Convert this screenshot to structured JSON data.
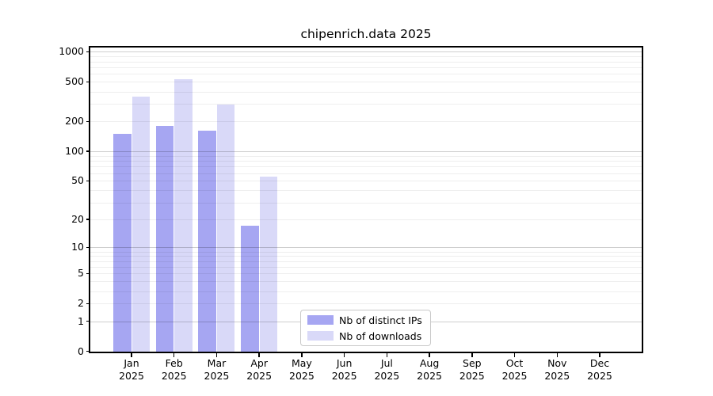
{
  "title": "chipenrich.data 2025",
  "legend": {
    "items": [
      {
        "label": "Nb of distinct IPs",
        "color": "#a6a6f2"
      },
      {
        "label": "Nb of downloads",
        "color": "#d9d9f8"
      }
    ]
  },
  "y_axis": {
    "tick_labels": [
      "1000",
      "500",
      "200",
      "100",
      "50",
      "20",
      "10",
      "5",
      "2",
      "1",
      "0"
    ]
  },
  "x_axis": {
    "months": [
      {
        "label": "Jan",
        "year": "2025"
      },
      {
        "label": "Feb",
        "year": "2025"
      },
      {
        "label": "Mar",
        "year": "2025"
      },
      {
        "label": "Apr",
        "year": "2025"
      },
      {
        "label": "May",
        "year": "2025"
      },
      {
        "label": "Jun",
        "year": "2025"
      },
      {
        "label": "Jul",
        "year": "2025"
      },
      {
        "label": "Aug",
        "year": "2025"
      },
      {
        "label": "Sep",
        "year": "2025"
      },
      {
        "label": "Oct",
        "year": "2025"
      },
      {
        "label": "Nov",
        "year": "2025"
      },
      {
        "label": "Dec",
        "year": "2025"
      }
    ]
  },
  "chart_data": {
    "type": "bar",
    "title": "chipenrich.data 2025",
    "categories": [
      "Jan 2025",
      "Feb 2025",
      "Mar 2025",
      "Apr 2025",
      "May 2025",
      "Jun 2025",
      "Jul 2025",
      "Aug 2025",
      "Sep 2025",
      "Oct 2025",
      "Nov 2025",
      "Dec 2025"
    ],
    "series": [
      {
        "name": "Nb of distinct IPs",
        "color": "#a6a6f2",
        "values": [
          150,
          180,
          160,
          17,
          null,
          null,
          null,
          null,
          null,
          null,
          null,
          null
        ]
      },
      {
        "name": "Nb of downloads",
        "color": "#d9d9f8",
        "values": [
          355,
          535,
          295,
          55,
          null,
          null,
          null,
          null,
          null,
          null,
          null,
          null
        ]
      }
    ],
    "yscale": "log1p",
    "yticks": [
      1000,
      500,
      200,
      100,
      50,
      20,
      10,
      5,
      2,
      1,
      0
    ],
    "ylim": [
      0,
      1150
    ],
    "xlabel": "",
    "ylabel": "",
    "grid": true,
    "legend_position": "lower center"
  }
}
